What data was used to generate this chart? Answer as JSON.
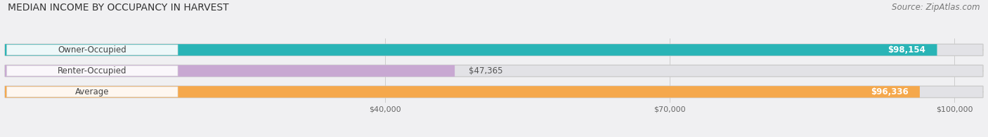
{
  "title": "MEDIAN INCOME BY OCCUPANCY IN HARVEST",
  "source": "Source: ZipAtlas.com",
  "categories": [
    "Owner-Occupied",
    "Renter-Occupied",
    "Average"
  ],
  "values": [
    98154,
    47365,
    96336
  ],
  "bar_colors": [
    "#29b4b6",
    "#c8a8d2",
    "#f5a84c"
  ],
  "value_labels": [
    "$98,154",
    "$47,365",
    "$96,336"
  ],
  "x_ticks": [
    40000,
    70000,
    100000
  ],
  "x_tick_labels": [
    "$40,000",
    "$70,000",
    "$100,000"
  ],
  "xmin": 0,
  "xmax": 103000,
  "background_color": "#f0f0f2",
  "bar_background_color": "#e2e2e6",
  "title_fontsize": 10,
  "source_fontsize": 8.5,
  "label_fontsize": 8.5,
  "value_fontsize": 8.5,
  "tick_fontsize": 8,
  "bar_height": 0.55,
  "figsize": [
    14.06,
    1.96
  ],
  "dpi": 100
}
